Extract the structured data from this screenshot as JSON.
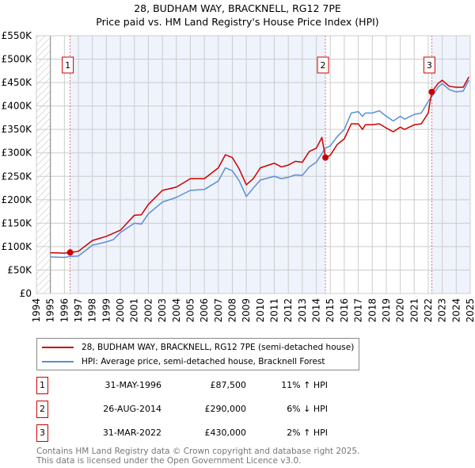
{
  "title": "28, BUDHAM WAY, BRACKNELL, RG12 7PE",
  "subtitle": "Price paid vs. HM Land Registry's House Price Index (HPI)",
  "colors": {
    "property": "#cc0000",
    "hpi": "#5b8fd4",
    "shade": "#eef3fc"
  },
  "chart_data": {
    "type": "line",
    "xlim": [
      1994,
      2025
    ],
    "ylim": [
      0,
      550000
    ],
    "yticks": [
      0,
      50000,
      100000,
      150000,
      200000,
      250000,
      300000,
      350000,
      400000,
      450000,
      500000,
      550000
    ],
    "ytick_labels": [
      "£0",
      "£50K",
      "£100K",
      "£150K",
      "£200K",
      "£250K",
      "£300K",
      "£350K",
      "£400K",
      "£450K",
      "£500K",
      "£550K"
    ],
    "xtick_labels": [
      "1994",
      "1995",
      "1996",
      "1997",
      "1998",
      "1999",
      "2000",
      "2001",
      "2002",
      "2003",
      "2004",
      "2005",
      "2006",
      "2007",
      "2008",
      "2009",
      "2010",
      "2011",
      "2012",
      "2013",
      "2014",
      "2015",
      "2016",
      "2017",
      "2018",
      "2019",
      "2020",
      "2021",
      "2022",
      "2023",
      "2024",
      "2025"
    ],
    "grid": true,
    "series": [
      {
        "name": "28, BUDHAM WAY, BRACKNELL, RG12 7PE (semi-detached house)",
        "color": "#cc0000",
        "x": [
          1995,
          1996,
          1996.41,
          1997,
          1998,
          1999,
          2000,
          2001,
          2001.5,
          2002,
          2003,
          2004,
          2005,
          2006,
          2007,
          2007.5,
          2008,
          2008.5,
          2009,
          2009.5,
          2010,
          2011,
          2011.5,
          2012,
          2012.5,
          2013,
          2013.5,
          2014,
          2014.4,
          2014.65,
          2015,
          2015.5,
          2016,
          2016.5,
          2017,
          2017.3,
          2017.5,
          2018,
          2018.5,
          2019,
          2019.5,
          2020,
          2020.3,
          2021,
          2021.5,
          2022,
          2022.25,
          2022.7,
          2023,
          2023.5,
          2024,
          2024.5,
          2024.9
        ],
        "y": [
          87000,
          86000,
          87500,
          90000,
          113000,
          122000,
          135000,
          167000,
          168000,
          190000,
          220000,
          227000,
          245000,
          245000,
          268000,
          296000,
          290000,
          265000,
          232000,
          245000,
          268000,
          278000,
          270000,
          274000,
          282000,
          280000,
          303000,
          310000,
          333000,
          290000,
          295000,
          318000,
          330000,
          362000,
          362000,
          350000,
          360000,
          360000,
          362000,
          353000,
          345000,
          355000,
          350000,
          360000,
          362000,
          385000,
          430000,
          448000,
          455000,
          442000,
          440000,
          440000,
          462000
        ]
      },
      {
        "name": "HPI: Average price, semi-detached house, Bracknell Forest",
        "color": "#5b8fd4",
        "x": [
          1995,
          1996,
          1996.41,
          1997,
          1998,
          1999,
          1999.5,
          2000,
          2001,
          2001.5,
          2002,
          2003,
          2004,
          2005,
          2006,
          2007,
          2007.5,
          2008,
          2008.5,
          2009,
          2009.5,
          2010,
          2011,
          2011.5,
          2012,
          2012.5,
          2013,
          2013.5,
          2014,
          2014.65,
          2015,
          2015.5,
          2016,
          2016.5,
          2017,
          2017.3,
          2017.5,
          2018,
          2018.5,
          2019,
          2019.5,
          2020,
          2020.3,
          2021,
          2021.5,
          2022,
          2022.25,
          2022.7,
          2023,
          2023.5,
          2024,
          2024.5,
          2024.9
        ],
        "y": [
          78000,
          77000,
          79000,
          80000,
          103000,
          110000,
          115000,
          130000,
          150000,
          148000,
          170000,
          195000,
          205000,
          220000,
          222000,
          240000,
          268000,
          262000,
          240000,
          207000,
          225000,
          242000,
          250000,
          245000,
          248000,
          253000,
          252000,
          270000,
          280000,
          310000,
          315000,
          335000,
          350000,
          385000,
          388000,
          378000,
          385000,
          385000,
          390000,
          378000,
          368000,
          378000,
          372000,
          382000,
          385000,
          410000,
          420000,
          440000,
          448000,
          435000,
          430000,
          432000,
          455000
        ]
      }
    ],
    "sales": [
      {
        "label": "1",
        "x": 1996.41,
        "y": 87500
      },
      {
        "label": "2",
        "x": 2014.65,
        "y": 290000
      },
      {
        "label": "3",
        "x": 2022.25,
        "y": 430000
      }
    ]
  },
  "legend": {
    "property": "28, BUDHAM WAY, BRACKNELL, RG12 7PE (semi-detached house)",
    "hpi": "HPI: Average price, semi-detached house, Bracknell Forest"
  },
  "transactions": [
    {
      "num": "1",
      "date": "31-MAY-1996",
      "price": "£87,500",
      "hpi": "11% ↑ HPI"
    },
    {
      "num": "2",
      "date": "26-AUG-2014",
      "price": "£290,000",
      "hpi": "6% ↓ HPI"
    },
    {
      "num": "3",
      "date": "31-MAR-2022",
      "price": "£430,000",
      "hpi": "2% ↑ HPI"
    }
  ],
  "footer": {
    "line1": "Contains HM Land Registry data © Crown copyright and database right 2025.",
    "line2": "This data is licensed under the Open Government Licence v3.0."
  }
}
